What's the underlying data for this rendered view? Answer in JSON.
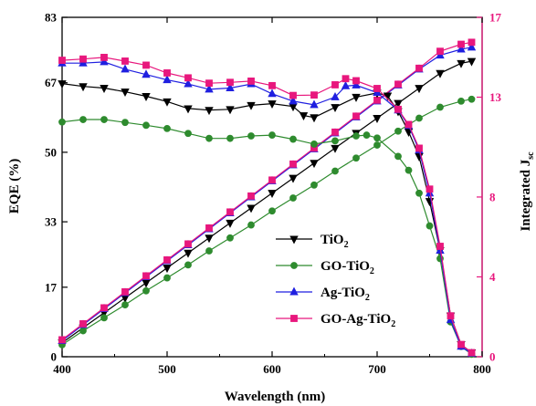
{
  "chart_data": {
    "type": "line",
    "xlabel": "Wavelength (nm)",
    "ylabel": "EQE (%)",
    "y2label": "Integrated J",
    "y2label_sub": "sc",
    "xlim": [
      400,
      800
    ],
    "ylim": [
      0,
      83
    ],
    "y2lim": [
      0,
      17
    ],
    "xticks": [
      "400",
      "500",
      "600",
      "700",
      "800"
    ],
    "yticks": [
      "0",
      "17",
      "33",
      "50",
      "67",
      "83"
    ],
    "y2ticks": [
      "0",
      "4",
      "8",
      "13",
      "17"
    ],
    "grid": false,
    "legend_position": "lower-center",
    "colors": {
      "tio2": "#000000",
      "go_tio2": "#2e8b2e",
      "ag_tio2": "#1f1fe0",
      "go_ag_tio2": "#e8177d",
      "right_axis": "#e8177d"
    },
    "legend": [
      {
        "key": "tio2",
        "base": "TiO",
        "sub": "2",
        "marker": "triangle-down"
      },
      {
        "key": "go_tio2",
        "base": "GO-TiO",
        "sub": "2",
        "marker": "circle"
      },
      {
        "key": "ag_tio2",
        "base": "Ag-TiO",
        "sub": "2",
        "marker": "triangle-up"
      },
      {
        "key": "go_ag_tio2",
        "base": "GO-Ag-TiO",
        "sub": "2",
        "marker": "square"
      }
    ],
    "eqe_series": [
      {
        "key": "tio2",
        "axis": "left",
        "marker": "triangle-down",
        "points": [
          [
            400,
            66.8
          ],
          [
            420,
            66.1
          ],
          [
            440,
            65.7
          ],
          [
            460,
            64.8
          ],
          [
            480,
            63.7
          ],
          [
            500,
            62.4
          ],
          [
            520,
            60.7
          ],
          [
            540,
            60.3
          ],
          [
            560,
            60.5
          ],
          [
            580,
            61.5
          ],
          [
            600,
            61.9
          ],
          [
            620,
            61.2
          ],
          [
            630,
            59
          ],
          [
            640,
            58.5
          ],
          [
            660,
            61
          ],
          [
            680,
            63.5
          ],
          [
            700,
            64.5
          ],
          [
            710,
            63.8
          ],
          [
            720,
            60
          ],
          [
            730,
            55
          ],
          [
            740,
            49
          ],
          [
            750,
            38
          ],
          [
            760,
            26
          ],
          [
            770,
            10
          ],
          [
            780,
            3
          ],
          [
            790,
            1
          ]
        ]
      },
      {
        "key": "go_tio2",
        "axis": "left",
        "marker": "circle",
        "points": [
          [
            400,
            57.4
          ],
          [
            420,
            58
          ],
          [
            440,
            58
          ],
          [
            460,
            57.3
          ],
          [
            480,
            56.6
          ],
          [
            500,
            55.8
          ],
          [
            520,
            54.6
          ],
          [
            540,
            53.4
          ],
          [
            560,
            53.4
          ],
          [
            580,
            54
          ],
          [
            600,
            54.2
          ],
          [
            620,
            53.2
          ],
          [
            640,
            52
          ],
          [
            660,
            52.8
          ],
          [
            680,
            54
          ],
          [
            690,
            54.2
          ],
          [
            700,
            53.5
          ],
          [
            720,
            49
          ],
          [
            730,
            45.6
          ],
          [
            740,
            40
          ],
          [
            750,
            32
          ],
          [
            760,
            24
          ],
          [
            770,
            8.5
          ],
          [
            780,
            2.5
          ],
          [
            790,
            0.6
          ]
        ]
      },
      {
        "key": "ag_tio2",
        "axis": "left",
        "marker": "triangle-up",
        "points": [
          [
            400,
            71.8
          ],
          [
            420,
            71.8
          ],
          [
            440,
            72.1
          ],
          [
            460,
            70.3
          ],
          [
            480,
            69
          ],
          [
            500,
            67.7
          ],
          [
            520,
            66.7
          ],
          [
            540,
            65.4
          ],
          [
            560,
            65.7
          ],
          [
            580,
            66.7
          ],
          [
            600,
            64.3
          ],
          [
            620,
            62.5
          ],
          [
            640,
            61.6
          ],
          [
            660,
            63.5
          ],
          [
            670,
            66.2
          ],
          [
            680,
            66.4
          ],
          [
            700,
            64.6
          ],
          [
            720,
            60.3
          ],
          [
            730,
            56.5
          ],
          [
            740,
            50.5
          ],
          [
            750,
            40
          ],
          [
            760,
            26
          ],
          [
            770,
            9
          ],
          [
            780,
            2.5
          ],
          [
            790,
            0.8
          ]
        ]
      },
      {
        "key": "go_ag_tio2",
        "axis": "left",
        "marker": "square",
        "points": [
          [
            400,
            72.5
          ],
          [
            420,
            72.8
          ],
          [
            440,
            73.2
          ],
          [
            460,
            72.3
          ],
          [
            480,
            71.3
          ],
          [
            500,
            69.4
          ],
          [
            520,
            68.2
          ],
          [
            540,
            66.9
          ],
          [
            560,
            67.1
          ],
          [
            580,
            67.4
          ],
          [
            600,
            66.3
          ],
          [
            620,
            63.9
          ],
          [
            640,
            64
          ],
          [
            660,
            66.5
          ],
          [
            670,
            68
          ],
          [
            680,
            67.5
          ],
          [
            700,
            65.6
          ],
          [
            720,
            60.5
          ],
          [
            730,
            56.8
          ],
          [
            740,
            51
          ],
          [
            750,
            41
          ],
          [
            760,
            27
          ],
          [
            770,
            10
          ],
          [
            780,
            3
          ],
          [
            790,
            1
          ]
        ]
      }
    ],
    "integrated_series": [
      {
        "key": "tio2",
        "axis": "right",
        "marker": "triangle-down",
        "points": [
          [
            400,
            0.7
          ],
          [
            420,
            1.45
          ],
          [
            440,
            2.2
          ],
          [
            460,
            2.95
          ],
          [
            480,
            3.7
          ],
          [
            500,
            4.45
          ],
          [
            520,
            5.2
          ],
          [
            540,
            5.95
          ],
          [
            560,
            6.7
          ],
          [
            580,
            7.45
          ],
          [
            600,
            8.2
          ],
          [
            620,
            8.95
          ],
          [
            640,
            9.7
          ],
          [
            660,
            10.45
          ],
          [
            680,
            11.2
          ],
          [
            700,
            11.95
          ],
          [
            720,
            12.7
          ],
          [
            740,
            13.45
          ],
          [
            760,
            14.2
          ],
          [
            780,
            14.7
          ],
          [
            790,
            14.8
          ]
        ]
      },
      {
        "key": "go_tio2",
        "axis": "right",
        "marker": "circle",
        "points": [
          [
            400,
            0.6
          ],
          [
            420,
            1.3
          ],
          [
            440,
            1.95
          ],
          [
            460,
            2.6
          ],
          [
            480,
            3.3
          ],
          [
            500,
            3.95
          ],
          [
            520,
            4.6
          ],
          [
            540,
            5.3
          ],
          [
            560,
            5.95
          ],
          [
            580,
            6.6
          ],
          [
            600,
            7.3
          ],
          [
            620,
            7.95
          ],
          [
            640,
            8.6
          ],
          [
            660,
            9.3
          ],
          [
            680,
            9.95
          ],
          [
            700,
            10.6
          ],
          [
            720,
            11.3
          ],
          [
            740,
            11.95
          ],
          [
            760,
            12.5
          ],
          [
            780,
            12.8
          ],
          [
            790,
            12.9
          ]
        ]
      },
      {
        "key": "ag_tio2",
        "axis": "right",
        "marker": "triangle-up",
        "points": [
          [
            400,
            0.8
          ],
          [
            420,
            1.6
          ],
          [
            440,
            2.4
          ],
          [
            460,
            3.2
          ],
          [
            480,
            4
          ],
          [
            500,
            4.8
          ],
          [
            520,
            5.6
          ],
          [
            540,
            6.4
          ],
          [
            560,
            7.2
          ],
          [
            580,
            8
          ],
          [
            600,
            8.8
          ],
          [
            620,
            9.6
          ],
          [
            640,
            10.4
          ],
          [
            660,
            11.2
          ],
          [
            680,
            12
          ],
          [
            700,
            12.8
          ],
          [
            720,
            13.6
          ],
          [
            740,
            14.4
          ],
          [
            760,
            15.1
          ],
          [
            780,
            15.4
          ],
          [
            790,
            15.5
          ]
        ]
      },
      {
        "key": "go_ag_tio2",
        "axis": "right",
        "marker": "square",
        "points": [
          [
            400,
            0.85
          ],
          [
            420,
            1.65
          ],
          [
            440,
            2.45
          ],
          [
            460,
            3.25
          ],
          [
            480,
            4.05
          ],
          [
            500,
            4.85
          ],
          [
            520,
            5.65
          ],
          [
            540,
            6.45
          ],
          [
            560,
            7.25
          ],
          [
            580,
            8.05
          ],
          [
            600,
            8.85
          ],
          [
            620,
            9.65
          ],
          [
            640,
            10.45
          ],
          [
            660,
            11.25
          ],
          [
            680,
            12.05
          ],
          [
            700,
            12.85
          ],
          [
            720,
            13.65
          ],
          [
            740,
            14.45
          ],
          [
            760,
            15.3
          ],
          [
            780,
            15.65
          ],
          [
            790,
            15.75
          ]
        ]
      }
    ]
  }
}
